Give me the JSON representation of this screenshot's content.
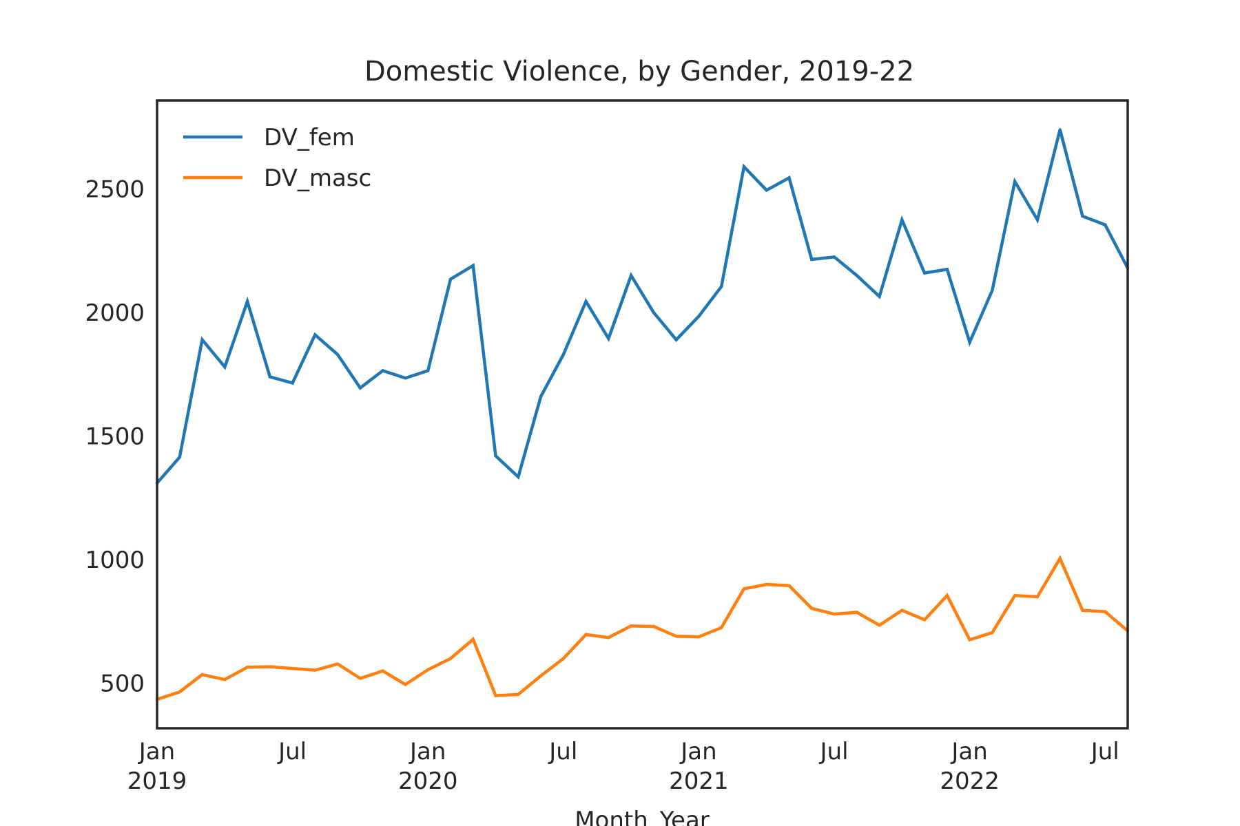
{
  "chart_data": {
    "type": "line",
    "title": "Domestic Violence, by Gender, 2019-22",
    "xlabel": "Month_Year",
    "ylabel": "",
    "x": [
      "2019-01",
      "2019-02",
      "2019-03",
      "2019-04",
      "2019-05",
      "2019-06",
      "2019-07",
      "2019-08",
      "2019-09",
      "2019-10",
      "2019-11",
      "2019-12",
      "2020-01",
      "2020-02",
      "2020-03",
      "2020-04",
      "2020-05",
      "2020-06",
      "2020-07",
      "2020-08",
      "2020-09",
      "2020-10",
      "2020-11",
      "2020-12",
      "2021-01",
      "2021-02",
      "2021-03",
      "2021-04",
      "2021-05",
      "2021-06",
      "2021-07",
      "2021-08",
      "2021-09",
      "2021-10",
      "2021-11",
      "2021-12",
      "2022-01",
      "2022-02",
      "2022-03",
      "2022-04",
      "2022-05",
      "2022-06",
      "2022-07",
      "2022-08"
    ],
    "series": [
      {
        "name": "DV_fem",
        "color": "#1f77b4",
        "values": [
          1310,
          1415,
          1890,
          1780,
          2045,
          1740,
          1715,
          1910,
          1830,
          1695,
          1765,
          1735,
          1765,
          2135,
          2190,
          1420,
          1335,
          1660,
          1830,
          2045,
          1895,
          2150,
          2000,
          1890,
          1985,
          2105,
          2590,
          2495,
          2545,
          2215,
          2225,
          2150,
          2065,
          2375,
          2160,
          2175,
          1880,
          2090,
          2530,
          2375,
          2740,
          2390,
          2355,
          2180
        ]
      },
      {
        "name": "DV_masc",
        "color": "#ff7f0e",
        "values": [
          435,
          465,
          535,
          515,
          565,
          567,
          560,
          553,
          578,
          520,
          550,
          495,
          555,
          600,
          678,
          450,
          455,
          530,
          600,
          697,
          685,
          732,
          730,
          690,
          688,
          725,
          882,
          900,
          895,
          803,
          780,
          787,
          735,
          795,
          757,
          855,
          676,
          705,
          855,
          850,
          1005,
          795,
          790,
          712
        ]
      }
    ],
    "yticks": [
      500,
      1000,
      1500,
      2000,
      2500
    ],
    "ylim": [
      318,
      2858
    ],
    "xticks": [
      {
        "x": "2019-01",
        "label": "Jan",
        "sublabel": "2019"
      },
      {
        "x": "2019-07",
        "label": "Jul",
        "sublabel": ""
      },
      {
        "x": "2020-01",
        "label": "Jan",
        "sublabel": "2020"
      },
      {
        "x": "2020-07",
        "label": "Jul",
        "sublabel": ""
      },
      {
        "x": "2021-01",
        "label": "Jan",
        "sublabel": "2021"
      },
      {
        "x": "2021-07",
        "label": "Jul",
        "sublabel": ""
      },
      {
        "x": "2022-01",
        "label": "Jan",
        "sublabel": "2022"
      },
      {
        "x": "2022-07",
        "label": "Jul",
        "sublabel": ""
      }
    ],
    "grid": false,
    "legend": "top-left"
  }
}
